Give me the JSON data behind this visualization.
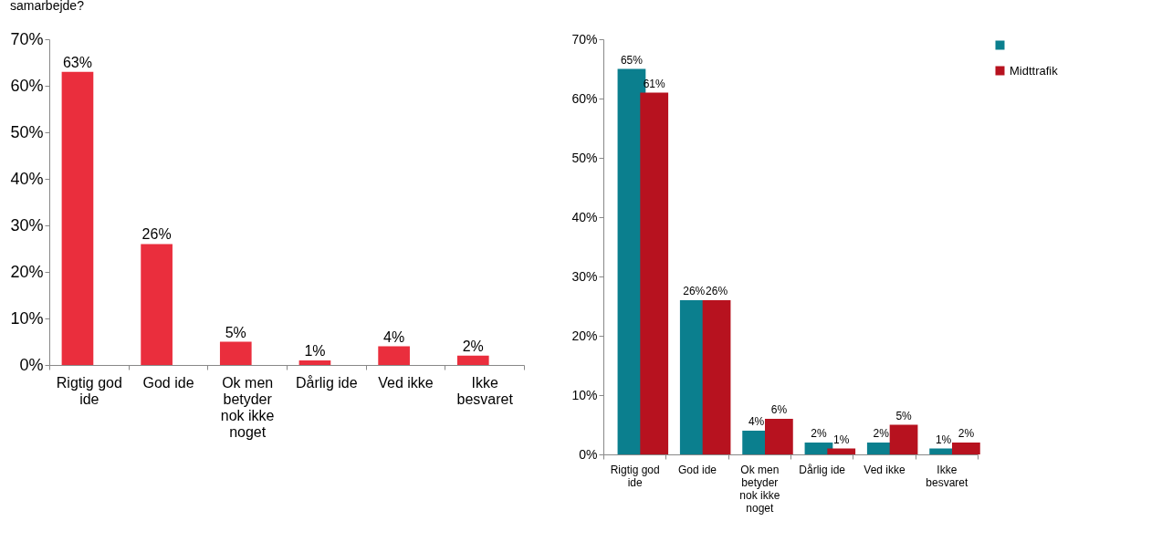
{
  "chart_data": [
    {
      "type": "bar",
      "title": "samarbejde?",
      "categories": [
        "Rigtig god ide",
        "God ide",
        "Ok men betyder nok ikke noget",
        "Dårlig ide",
        "Ved ikke",
        "Ikke besvaret"
      ],
      "series": [
        {
          "color": "#ea2e3d",
          "values": [
            63,
            26,
            5,
            1,
            4,
            2
          ],
          "value_labels": [
            "63%",
            "26%",
            "5%",
            "1%",
            "4%",
            "2%"
          ]
        }
      ],
      "ylim": [
        0,
        70
      ],
      "yticks": [
        {
          "value": 0,
          "label": "0%"
        },
        {
          "value": 10,
          "label": "10%"
        },
        {
          "value": 20,
          "label": "20%"
        },
        {
          "value": 30,
          "label": "30%"
        },
        {
          "value": 40,
          "label": "40%"
        },
        {
          "value": 50,
          "label": "50%"
        },
        {
          "value": 60,
          "label": "60%"
        },
        {
          "value": 70,
          "label": "70%"
        }
      ],
      "grid": false,
      "legend": false
    },
    {
      "type": "bar",
      "categories": [
        "Rigtig god ide",
        "God ide",
        "Ok men betyder nok ikke noget",
        "Dårlig ide",
        "Ved ikke",
        "Ikke besvaret"
      ],
      "series": [
        {
          "color": "#0b7f8e",
          "values": [
            65,
            26,
            4,
            2,
            2,
            1
          ],
          "value_labels": [
            "65%",
            "26%",
            "4%",
            "2%",
            "2%",
            "1%"
          ]
        },
        {
          "name": "Midttrafik",
          "color": "#b7121f",
          "values": [
            61,
            26,
            6,
            1,
            5,
            2
          ],
          "value_labels": [
            "61%",
            "26%",
            "6%",
            "1%",
            "5%",
            "2%"
          ]
        }
      ],
      "ylim": [
        0,
        70
      ],
      "yticks": [
        {
          "value": 0,
          "label": "0%"
        },
        {
          "value": 10,
          "label": "10%"
        },
        {
          "value": 20,
          "label": "20%"
        },
        {
          "value": 30,
          "label": "30%"
        },
        {
          "value": 40,
          "label": "40%"
        },
        {
          "value": 50,
          "label": "50%"
        },
        {
          "value": 60,
          "label": "60%"
        },
        {
          "value": 70,
          "label": "70%"
        }
      ],
      "grid": false,
      "legend": "right"
    }
  ]
}
